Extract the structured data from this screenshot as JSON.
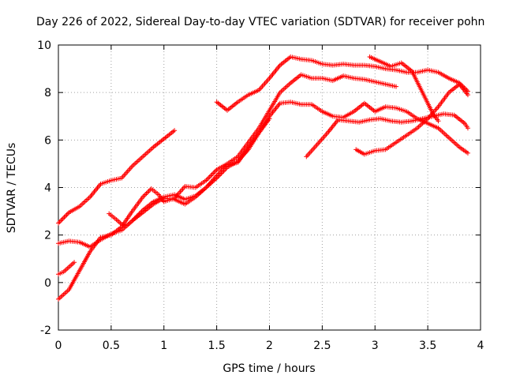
{
  "chart_data": {
    "type": "scatter",
    "title": "Day 226 of 2022, Sidereal Day-to-day VTEC variation (SDTVAR) for receiver pohn",
    "xlabel": "GPS time / hours",
    "ylabel": "SDTVAR / TECUs",
    "xlim": [
      0,
      4
    ],
    "ylim": [
      -2,
      10
    ],
    "x_ticks": [
      0,
      0.5,
      1,
      1.5,
      2,
      2.5,
      3,
      3.5,
      4
    ],
    "x_tick_labels": [
      "0",
      "0.5",
      "1",
      "1.5",
      "2",
      "2.5",
      "3",
      "3.5",
      "4"
    ],
    "y_ticks": [
      -2,
      0,
      2,
      4,
      6,
      8,
      10
    ],
    "y_tick_labels": [
      "-2",
      "0",
      "2",
      "4",
      "6",
      "8",
      "10"
    ],
    "grid": true,
    "marker": "plus",
    "color": "#ff0000",
    "series": [
      {
        "x": [
          0.0,
          0.1,
          0.2,
          0.3,
          0.4,
          0.5,
          0.6,
          0.7,
          0.8,
          0.9,
          1.0,
          1.1
        ],
        "y": [
          2.5,
          2.95,
          3.2,
          3.6,
          4.15,
          4.3,
          4.4,
          4.9,
          5.3,
          5.7,
          6.05,
          6.4
        ]
      },
      {
        "x": [
          0.0,
          0.1,
          0.2,
          0.3,
          0.4,
          0.5,
          0.6,
          0.7,
          0.8,
          0.9,
          1.0,
          1.1,
          1.2,
          1.3,
          1.4,
          1.5,
          1.6,
          1.7,
          1.8,
          1.9,
          2.0,
          2.1,
          2.2,
          2.3,
          2.4,
          2.5,
          2.6,
          2.7,
          2.8,
          2.9,
          3.0,
          3.1,
          3.2,
          3.3,
          3.4,
          3.5,
          3.6,
          3.7,
          3.8,
          3.88
        ],
        "y": [
          1.65,
          1.75,
          1.7,
          1.5,
          1.8,
          2.05,
          2.2,
          2.6,
          3.05,
          3.4,
          3.6,
          3.7,
          3.5,
          3.65,
          4.0,
          4.4,
          4.85,
          5.1,
          5.6,
          6.3,
          7.0,
          7.55,
          7.6,
          7.5,
          7.5,
          7.2,
          7.0,
          6.95,
          7.2,
          7.55,
          7.2,
          7.4,
          7.35,
          7.2,
          6.9,
          6.7,
          6.5,
          6.1,
          5.7,
          5.45
        ]
      },
      {
        "x": [
          0.0,
          0.05,
          0.1,
          0.15
        ],
        "y": [
          0.35,
          0.45,
          0.65,
          0.85
        ]
      },
      {
        "x": [
          0.0,
          0.1,
          0.2,
          0.3,
          0.4,
          0.5,
          0.6,
          0.7,
          0.8,
          0.88,
          0.95,
          1.0,
          1.1,
          1.2,
          1.3,
          1.4,
          1.5,
          1.6,
          1.7,
          1.8,
          1.9,
          2.0,
          2.1,
          2.2,
          2.3,
          2.4,
          2.5,
          2.6,
          2.7,
          2.8,
          2.9,
          3.0,
          3.1,
          3.2
        ],
        "y": [
          -0.7,
          -0.3,
          0.5,
          1.3,
          1.9,
          2.0,
          2.35,
          3.0,
          3.6,
          3.95,
          3.7,
          3.4,
          3.55,
          4.05,
          4.0,
          4.3,
          4.75,
          5.0,
          5.3,
          5.9,
          6.5,
          7.25,
          8.0,
          8.4,
          8.75,
          8.6,
          8.6,
          8.5,
          8.7,
          8.6,
          8.55,
          8.45,
          8.35,
          8.25
        ]
      },
      {
        "x": [
          0.48,
          0.55,
          0.6,
          0.65,
          0.7,
          0.8,
          0.9,
          1.0,
          1.1,
          1.2,
          1.3,
          1.4,
          1.5,
          1.6,
          1.7,
          1.8,
          1.9,
          2.0
        ],
        "y": [
          2.9,
          2.65,
          2.45,
          2.4,
          2.6,
          2.95,
          3.3,
          3.55,
          3.5,
          3.3,
          3.6,
          4.0,
          4.5,
          4.95,
          5.05,
          5.7,
          6.3,
          6.9
        ]
      },
      {
        "x": [
          1.5,
          1.6,
          1.7,
          1.8,
          1.9,
          2.0,
          2.1,
          2.2,
          2.3,
          2.4,
          2.5,
          2.6,
          2.7,
          2.8,
          2.9,
          3.0,
          3.1,
          3.2,
          3.3,
          3.4,
          3.5,
          3.6,
          3.7,
          3.8,
          3.88
        ],
        "y": [
          7.6,
          7.25,
          7.6,
          7.9,
          8.1,
          8.6,
          9.15,
          9.5,
          9.4,
          9.35,
          9.2,
          9.15,
          9.2,
          9.15,
          9.15,
          9.1,
          9.0,
          8.95,
          8.85,
          8.85,
          8.95,
          8.85,
          8.6,
          8.4,
          8.05
        ]
      },
      {
        "x": [
          2.35,
          2.45,
          2.55,
          2.65,
          2.75,
          2.85,
          2.95,
          3.05,
          3.15,
          3.25,
          3.35,
          3.45,
          3.55,
          3.65,
          3.75,
          3.85,
          3.88
        ],
        "y": [
          5.3,
          5.8,
          6.3,
          6.85,
          6.8,
          6.75,
          6.85,
          6.9,
          6.8,
          6.75,
          6.8,
          6.9,
          7.0,
          7.1,
          7.05,
          6.7,
          6.5
        ]
      },
      {
        "x": [
          2.82,
          2.9,
          3.0,
          3.1,
          3.2,
          3.3,
          3.4,
          3.5,
          3.6,
          3.7,
          3.8,
          3.88
        ],
        "y": [
          5.6,
          5.4,
          5.55,
          5.6,
          5.9,
          6.2,
          6.5,
          6.9,
          7.4,
          8.0,
          8.35,
          7.9
        ]
      },
      {
        "x": [
          2.95,
          3.05,
          3.15,
          3.25,
          3.35,
          3.45,
          3.55,
          3.6
        ],
        "y": [
          9.5,
          9.3,
          9.1,
          9.25,
          8.9,
          8.0,
          7.1,
          6.8
        ]
      }
    ]
  }
}
